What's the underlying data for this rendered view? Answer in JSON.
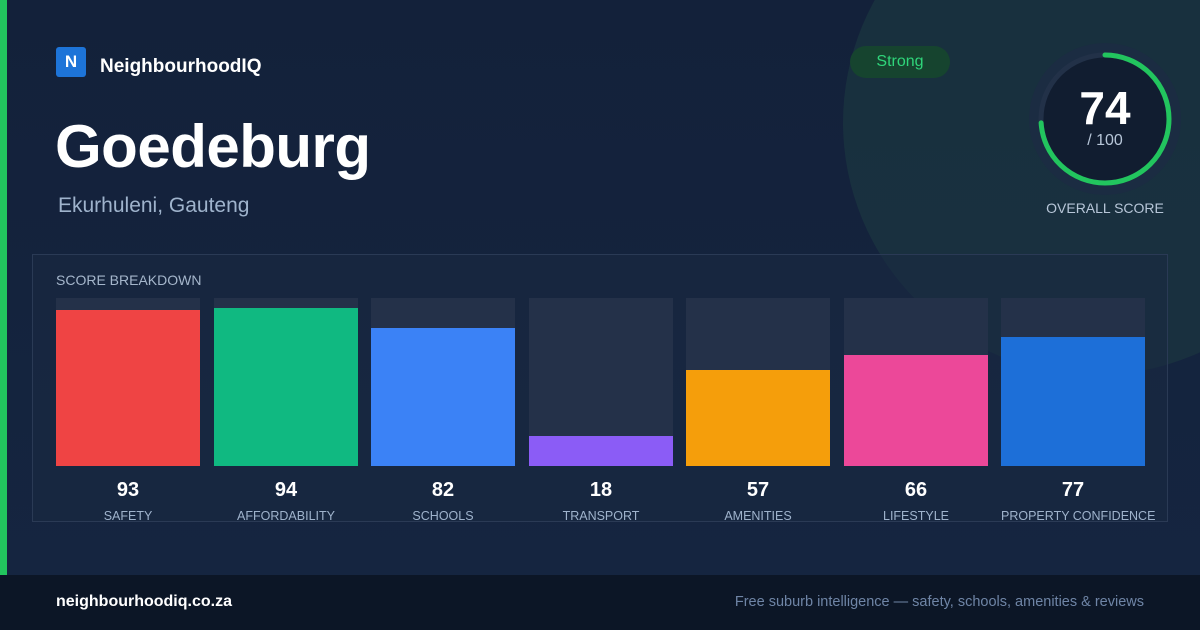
{
  "brand": {
    "logo_letter": "N",
    "name": "NeighbourhoodIQ"
  },
  "suburb": {
    "name": "Goedeburg",
    "region": "Ekurhuleni, Gauteng"
  },
  "overall": {
    "rating": "Strong",
    "score": "74",
    "max": "/ 100",
    "label": "OVERALL SCORE",
    "value": 74,
    "ring_color": "#22c55e"
  },
  "breakdown": {
    "title": "SCORE BREAKDOWN"
  },
  "chart_data": {
    "type": "bar",
    "title": "SCORE BREAKDOWN",
    "categories": [
      "SAFETY",
      "AFFORDABILITY",
      "SCHOOLS",
      "TRANSPORT",
      "AMENITIES",
      "LIFESTYLE",
      "PROPERTY CONFIDENCE"
    ],
    "values": [
      93,
      94,
      82,
      18,
      57,
      66,
      77
    ],
    "colors": [
      "#ef4444",
      "#10b981",
      "#3b82f6",
      "#8b5cf6",
      "#f59e0b",
      "#ec4899",
      "#1d6fd8"
    ],
    "ylim": [
      0,
      100
    ],
    "xlabel": "",
    "ylabel": "",
    "grid": false
  },
  "colors": {
    "accent": "#22c55e",
    "brand": "#1d74d8",
    "background": "#13213a"
  },
  "footer": {
    "url": "neighbourhoodiq.co.za",
    "tagline": "Free suburb intelligence — safety, schools, amenities & reviews"
  }
}
